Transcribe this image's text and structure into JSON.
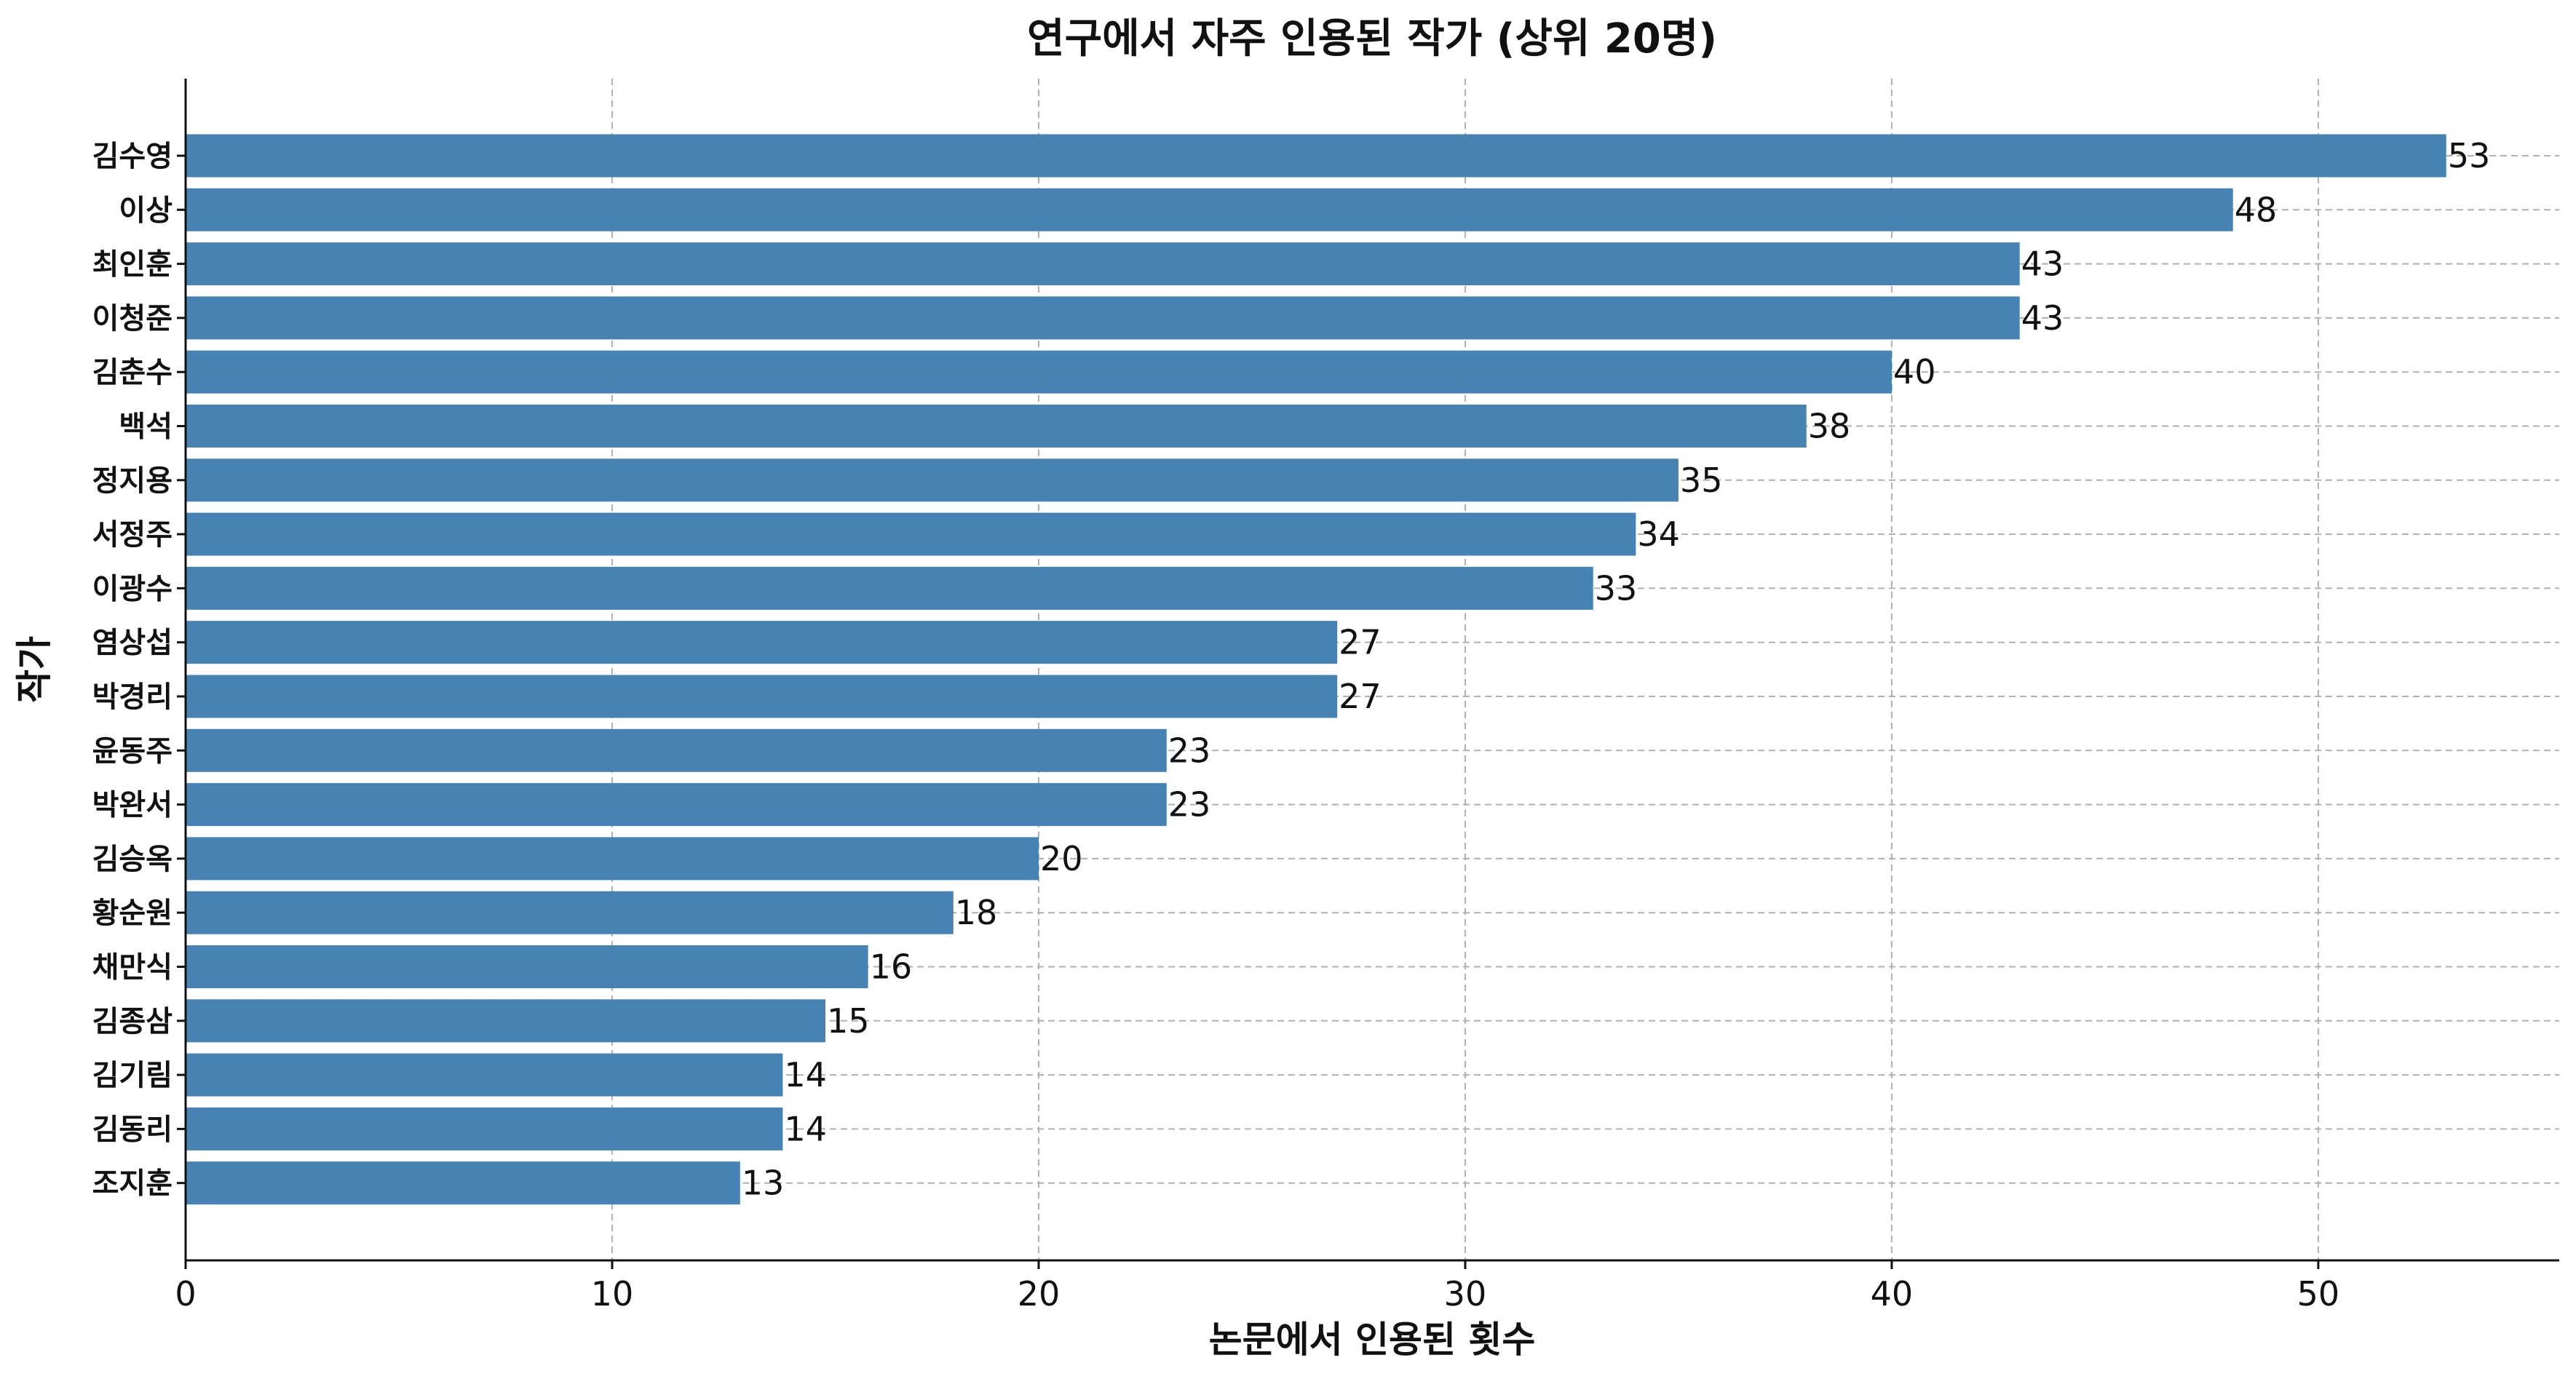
{
  "chart_data": {
    "type": "bar",
    "orientation": "horizontal",
    "title": "연구에서 자주 인용된 작가 (상위 20명)",
    "xlabel": "논문에서 인용된 횟수",
    "ylabel": "작가",
    "categories": [
      "김수영",
      "이상",
      "최인훈",
      "이청준",
      "김춘수",
      "백석",
      "정지용",
      "서정주",
      "이광수",
      "염상섭",
      "박경리",
      "윤동주",
      "박완서",
      "김승옥",
      "황순원",
      "채만식",
      "김종삼",
      "김기림",
      "김동리",
      "조지훈"
    ],
    "values": [
      53,
      48,
      43,
      43,
      40,
      38,
      35,
      34,
      33,
      27,
      27,
      23,
      23,
      20,
      18,
      16,
      15,
      14,
      14,
      13
    ],
    "xlim": [
      0,
      55.65
    ],
    "xticks": [
      0,
      10,
      20,
      30,
      40,
      50
    ],
    "grid": true,
    "bar_color": "#4682B4",
    "grid_color": "#b0b0b0"
  }
}
